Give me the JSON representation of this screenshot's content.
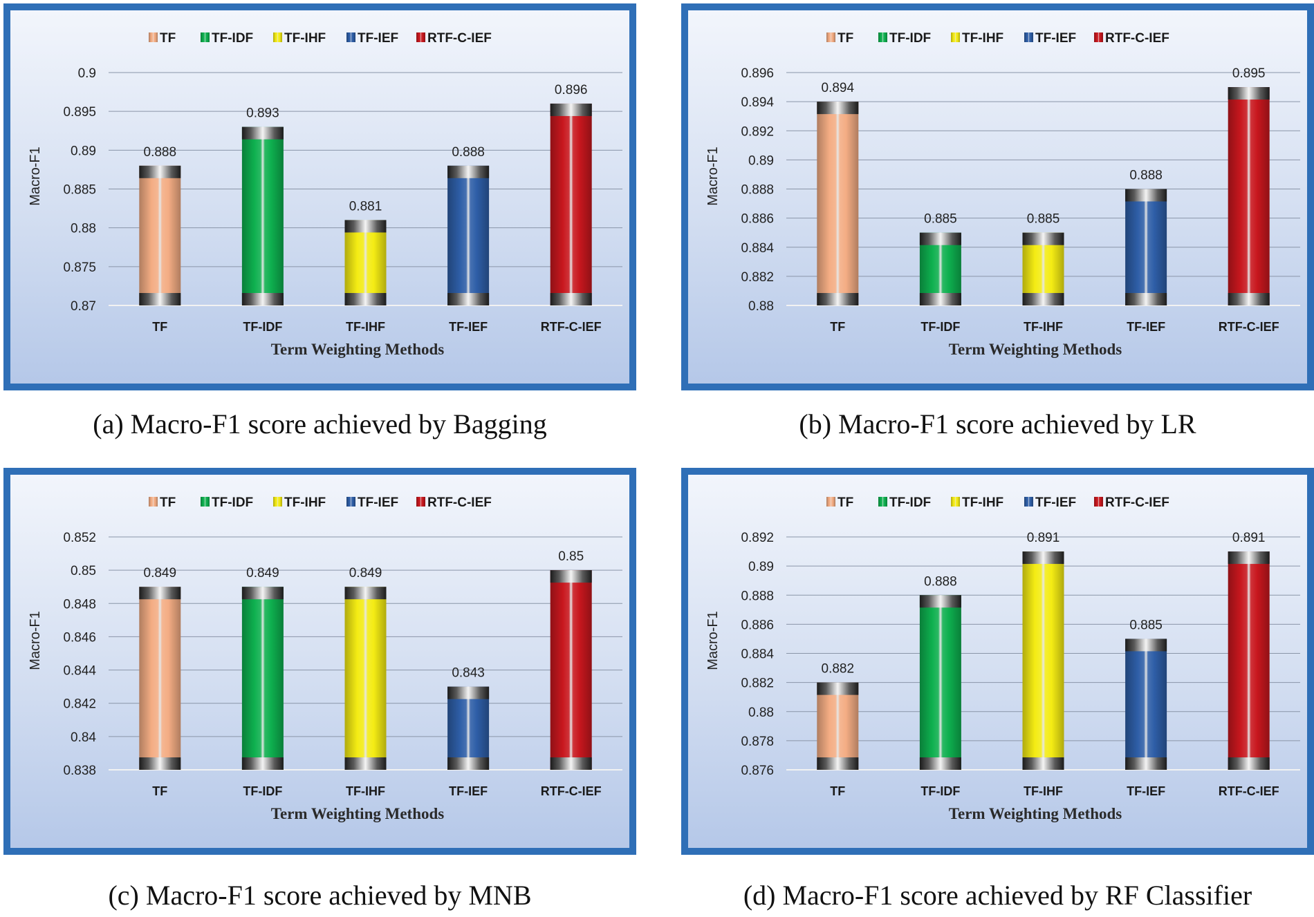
{
  "style": {
    "frame_color": "#2f6fb7",
    "series_colors": [
      "#f4ad84",
      "#0eb04f",
      "#f4ec14",
      "#2e5ea7",
      "#c8171e"
    ]
  },
  "chart_data": [
    {
      "type": "bar",
      "caption": "(a) Macro-F1 score achieved by Bagging",
      "legend": [
        "TF",
        "TF-IDF",
        "TF-IHF",
        "TF-IEF",
        "RTF-C-IEF"
      ],
      "categories": [
        "TF",
        "TF-IDF",
        "TF-IHF",
        "TF-IEF",
        "RTF-C-IEF"
      ],
      "values": [
        0.888,
        0.893,
        0.881,
        0.888,
        0.896
      ],
      "value_labels": [
        "0.888",
        "0.893",
        "0.881",
        "0.888",
        "0.896"
      ],
      "ylim": [
        0.87,
        0.9
      ],
      "yticks": [
        "0.87",
        "0.875",
        "0.88",
        "0.885",
        "0.89",
        "0.895",
        "0.9"
      ],
      "xlabel": "Term Weighting Methods",
      "ylabel": "Macro-F1",
      "legend_position": "top",
      "grid": true
    },
    {
      "type": "bar",
      "caption": "(b) Macro-F1 score achieved by LR",
      "legend": [
        "TF",
        "TF-IDF",
        "TF-IHF",
        "TF-IEF",
        "RTF-C-IEF"
      ],
      "categories": [
        "TF",
        "TF-IDF",
        "TF-IHF",
        "TF-IEF",
        "RTF-C-IEF"
      ],
      "values": [
        0.894,
        0.885,
        0.885,
        0.888,
        0.895
      ],
      "value_labels": [
        "0.894",
        "0.885",
        "0.885",
        "0.888",
        "0.895"
      ],
      "ylim": [
        0.88,
        0.896
      ],
      "yticks": [
        "0.88",
        "0.882",
        "0.884",
        "0.886",
        "0.888",
        "0.89",
        "0.892",
        "0.894",
        "0.896"
      ],
      "xlabel": "Term Weighting Methods",
      "ylabel": "Macro-F1",
      "legend_position": "top",
      "grid": true
    },
    {
      "type": "bar",
      "caption": "(c) Macro-F1 score achieved by MNB",
      "legend": [
        "TF",
        "TF-IDF",
        "TF-IHF",
        "TF-IEF",
        "RTF-C-IEF"
      ],
      "categories": [
        "TF",
        "TF-IDF",
        "TF-IHF",
        "TF-IEF",
        "RTF-C-IEF"
      ],
      "values": [
        0.849,
        0.849,
        0.849,
        0.843,
        0.85
      ],
      "value_labels": [
        "0.849",
        "0.849",
        "0.849",
        "0.843",
        "0.85"
      ],
      "ylim": [
        0.838,
        0.852
      ],
      "yticks": [
        "0.838",
        "0.84",
        "0.842",
        "0.844",
        "0.846",
        "0.848",
        "0.85",
        "0.852"
      ],
      "xlabel": "Term Weighting Methods",
      "ylabel": "Macro-F1",
      "legend_position": "top",
      "grid": true
    },
    {
      "type": "bar",
      "caption": "(d) Macro-F1 score achieved by RF Classifier",
      "legend": [
        "TF",
        "TF-IDF",
        "TF-IHF",
        "TF-IEF",
        "RTF-C-IEF"
      ],
      "categories": [
        "TF",
        "TF-IDF",
        "TF-IHF",
        "TF-IEF",
        "RTF-C-IEF"
      ],
      "values": [
        0.882,
        0.888,
        0.891,
        0.885,
        0.891
      ],
      "value_labels": [
        "0.882",
        "0.888",
        "0.891",
        "0.885",
        "0.891"
      ],
      "ylim": [
        0.876,
        0.892
      ],
      "yticks": [
        "0.876",
        "0.878",
        "0.88",
        "0.882",
        "0.884",
        "0.886",
        "0.888",
        "0.89",
        "0.892"
      ],
      "xlabel": "Term Weighting Methods",
      "ylabel": "Macro-F1",
      "legend_position": "top",
      "grid": true
    }
  ]
}
